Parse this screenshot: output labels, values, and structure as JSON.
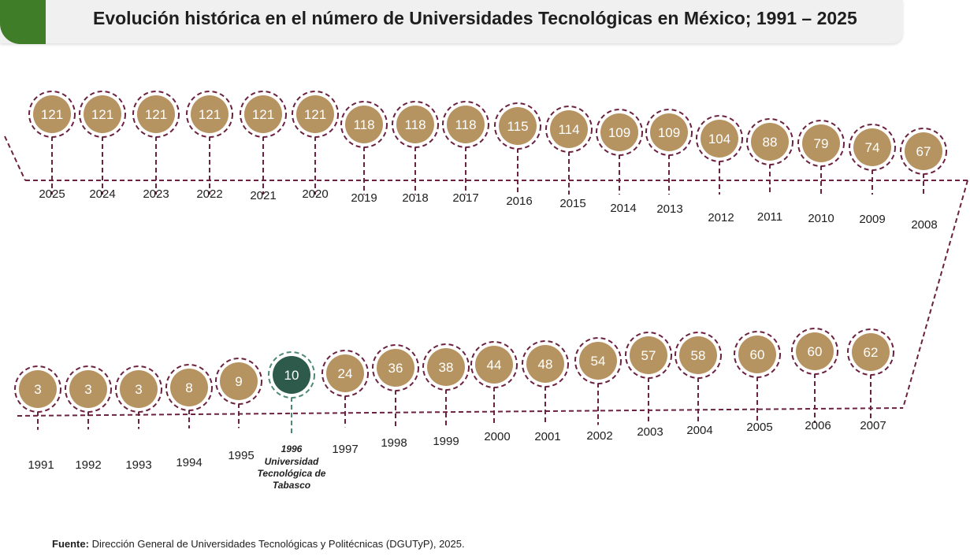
{
  "title": "Evolución histórica en el número de Universidades Tecnológicas en México; 1991 – 2025",
  "colors": {
    "node": "#b59462",
    "dash": "#6b2140",
    "highlight": "#2e5a4c",
    "highlight_dash": "#4e8a72",
    "accent": "#3f7d28"
  },
  "chart_data": {
    "type": "timeline",
    "top_row": [
      {
        "year": "2025",
        "value": "121"
      },
      {
        "year": "2024",
        "value": "121"
      },
      {
        "year": "2023",
        "value": "121"
      },
      {
        "year": "2022",
        "value": "121"
      },
      {
        "year": "2021",
        "value": "121"
      },
      {
        "year": "2020",
        "value": "121"
      },
      {
        "year": "2019",
        "value": "118"
      },
      {
        "year": "2018",
        "value": "118"
      },
      {
        "year": "2017",
        "value": "118"
      },
      {
        "year": "2016",
        "value": "115"
      },
      {
        "year": "2015",
        "value": "114"
      },
      {
        "year": "2014",
        "value": "109"
      },
      {
        "year": "2013",
        "value": "109"
      },
      {
        "year": "2012",
        "value": "104"
      },
      {
        "year": "2011",
        "value": "88"
      },
      {
        "year": "2010",
        "value": "79"
      },
      {
        "year": "2009",
        "value": "74"
      },
      {
        "year": "2008",
        "value": "67"
      }
    ],
    "bottom_row": [
      {
        "year": "1991",
        "value": "3"
      },
      {
        "year": "1992",
        "value": "3"
      },
      {
        "year": "1993",
        "value": "3"
      },
      {
        "year": "1994",
        "value": "8"
      },
      {
        "year": "1995",
        "value": "9"
      },
      {
        "year": "1996",
        "value": "10",
        "highlight": true,
        "note": [
          "Universidad",
          "Tecnológica de",
          "Tabasco"
        ]
      },
      {
        "year": "1997",
        "value": "24"
      },
      {
        "year": "1998",
        "value": "36"
      },
      {
        "year": "1999",
        "value": "38"
      },
      {
        "year": "2000",
        "value": "44"
      },
      {
        "year": "2001",
        "value": "48"
      },
      {
        "year": "2002",
        "value": "54"
      },
      {
        "year": "2003",
        "value": "57"
      },
      {
        "year": "2004",
        "value": "58"
      },
      {
        "year": "2005",
        "value": "60"
      },
      {
        "year": "2006",
        "value": "60"
      },
      {
        "year": "2007",
        "value": "62"
      }
    ]
  },
  "source": {
    "label": "Fuente:",
    "text": " Dirección General de Universidades Tecnológicas y Politécnicas (DGUTyP), 2025."
  }
}
